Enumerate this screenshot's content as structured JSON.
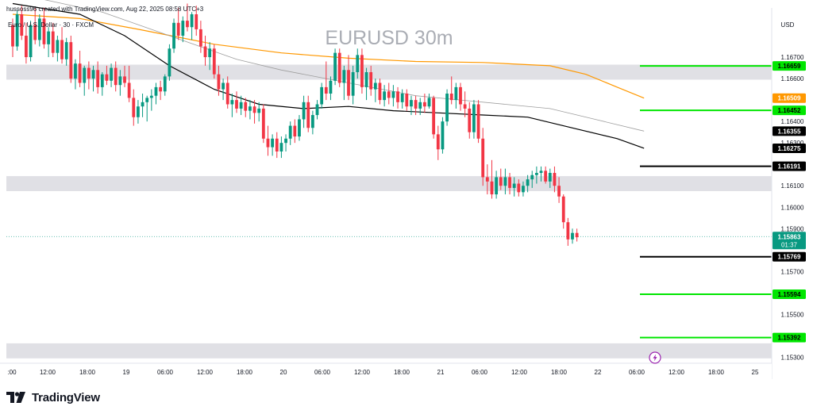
{
  "header": {
    "credit": "hussoss96 created with TradingView.com, Aug 22, 2025 08:58 UTC+3",
    "symbol_line": "Euro / U.S. Dollar · 30 · FXCM",
    "watermark": "EURUSD 30m",
    "currency": "USD"
  },
  "footer": {
    "brand": "TradingView"
  },
  "chart_data": {
    "type": "candlestick",
    "symbol": "EURUSD",
    "timeframe": "30m",
    "ylim": [
      1.1525,
      1.169
    ],
    "y_ticks": [
      "1.16700",
      "1.16600",
      "1.16400",
      "1.16300",
      "1.16100",
      "1.16000",
      "1.15900",
      "1.15700",
      "1.15500",
      "1.15300"
    ],
    "x_ticks": [
      ":00",
      "12:00",
      "18:00",
      "19",
      "06:00",
      "12:00",
      "18:00",
      "20",
      "06:00",
      "12:00",
      "18:00",
      "21",
      "06:00",
      "12:00",
      "18:00",
      "22",
      "06:00",
      "12:00",
      "18:00",
      "25"
    ],
    "zones": [
      {
        "from": 1.16595,
        "to": 1.16665
      },
      {
        "from": 1.16075,
        "to": 1.16145
      },
      {
        "from": 1.15295,
        "to": 1.15365
      }
    ],
    "levels": [
      {
        "value": 1.16659,
        "label": "1.16659",
        "color": "#00e600"
      },
      {
        "value": 1.16452,
        "label": "1.16452",
        "color": "#00e600"
      },
      {
        "value": 1.16191,
        "label": "1.16191",
        "color": "#000000"
      },
      {
        "value": 1.15769,
        "label": "1.15769",
        "color": "#000000"
      },
      {
        "value": 1.15594,
        "label": "1.15594",
        "color": "#00e600"
      },
      {
        "value": 1.15392,
        "label": "1.15392",
        "color": "#00e600"
      }
    ],
    "axis_tags": [
      {
        "value": 1.16659,
        "label": "1.16659",
        "bg": "#00e600",
        "fg": "#000000"
      },
      {
        "value": 1.16509,
        "label": "1.16509",
        "bg": "#ff9800",
        "fg": "#ffffff"
      },
      {
        "value": 1.16452,
        "label": "1.16452",
        "bg": "#00e600",
        "fg": "#000000"
      },
      {
        "value": 1.16355,
        "label": "1.16355",
        "bg": "#000000",
        "fg": "#ffffff"
      },
      {
        "value": 1.16275,
        "label": "1.16275",
        "bg": "#000000",
        "fg": "#ffffff"
      },
      {
        "value": 1.16191,
        "label": "1.16191",
        "bg": "#000000",
        "fg": "#ffffff"
      },
      {
        "value": 1.15769,
        "label": "1.15769",
        "bg": "#000000",
        "fg": "#ffffff"
      },
      {
        "value": 1.15594,
        "label": "1.15594",
        "bg": "#00e600",
        "fg": "#000000"
      },
      {
        "value": 1.15392,
        "label": "1.15392",
        "bg": "#00e600",
        "fg": "#000000"
      }
    ],
    "price_tag": {
      "value": 1.15863,
      "label": "1.15863",
      "countdown": "01:37",
      "bg": "#089981",
      "fg": "#ffffff"
    },
    "current_price": 1.15863,
    "ma_series": [
      {
        "color": "#ff9800",
        "points": [
          [
            0,
            1.169
          ],
          [
            15,
            1.1688
          ],
          [
            28,
            1.1683
          ],
          [
            45,
            1.1676
          ],
          [
            60,
            1.1672
          ],
          [
            75,
            1.16695
          ],
          [
            90,
            1.1668
          ],
          [
            105,
            1.16675
          ],
          [
            120,
            1.1666
          ],
          [
            128,
            1.1662
          ],
          [
            135,
            1.1656
          ],
          [
            141,
            1.16509
          ]
        ]
      },
      {
        "color": "#000000",
        "points": [
          [
            0,
            1.1695
          ],
          [
            15,
            1.169
          ],
          [
            25,
            1.168
          ],
          [
            35,
            1.1666
          ],
          [
            45,
            1.1655
          ],
          [
            55,
            1.1648
          ],
          [
            65,
            1.1646
          ],
          [
            75,
            1.1647
          ],
          [
            85,
            1.1645
          ],
          [
            95,
            1.1644
          ],
          [
            105,
            1.1643
          ],
          [
            115,
            1.1642
          ],
          [
            125,
            1.1637
          ],
          [
            135,
            1.1632
          ],
          [
            141,
            1.16275
          ]
        ]
      },
      {
        "color": "#9e9e9e",
        "points": [
          [
            0,
            1.17
          ],
          [
            20,
            1.1691
          ],
          [
            35,
            1.168
          ],
          [
            50,
            1.1669
          ],
          [
            60,
            1.1664
          ],
          [
            70,
            1.166
          ],
          [
            80,
            1.1656
          ],
          [
            90,
            1.1652
          ],
          [
            100,
            1.165
          ],
          [
            110,
            1.1648
          ],
          [
            120,
            1.1646
          ],
          [
            130,
            1.1641
          ],
          [
            141,
            1.16355
          ]
        ]
      }
    ],
    "candles": [
      [
        1.1685,
        1.1688,
        1.167,
        1.1675
      ],
      [
        1.1675,
        1.1692,
        1.1673,
        1.169
      ],
      [
        1.169,
        1.1694,
        1.1678,
        1.168
      ],
      [
        1.168,
        1.1686,
        1.1667,
        1.167
      ],
      [
        1.167,
        1.1687,
        1.1668,
        1.1685
      ],
      [
        1.1685,
        1.1693,
        1.1676,
        1.1678
      ],
      [
        1.1678,
        1.169,
        1.1675,
        1.1688
      ],
      [
        1.1688,
        1.1693,
        1.1674,
        1.1676
      ],
      [
        1.1676,
        1.1684,
        1.167,
        1.1682
      ],
      [
        1.1682,
        1.1686,
        1.167,
        1.1672
      ],
      [
        1.1672,
        1.168,
        1.1668,
        1.1678
      ],
      [
        1.1678,
        1.1684,
        1.1667,
        1.1669
      ],
      [
        1.1669,
        1.1679,
        1.1666,
        1.1677
      ],
      [
        1.1677,
        1.168,
        1.1658,
        1.166
      ],
      [
        1.166,
        1.1669,
        1.1655,
        1.1667
      ],
      [
        1.1667,
        1.1673,
        1.1656,
        1.1658
      ],
      [
        1.1658,
        1.1666,
        1.1652,
        1.1665
      ],
      [
        1.1665,
        1.1668,
        1.1655,
        1.166
      ],
      [
        1.166,
        1.1666,
        1.1654,
        1.1664
      ],
      [
        1.1664,
        1.1668,
        1.1653,
        1.1656
      ],
      [
        1.1656,
        1.1663,
        1.1652,
        1.1662
      ],
      [
        1.1662,
        1.1666,
        1.1657,
        1.1659
      ],
      [
        1.1659,
        1.1667,
        1.1656,
        1.1665
      ],
      [
        1.1665,
        1.1668,
        1.1654,
        1.1657
      ],
      [
        1.1657,
        1.1664,
        1.1652,
        1.1661
      ],
      [
        1.1661,
        1.1666,
        1.1656,
        1.1658
      ],
      [
        1.1658,
        1.1666,
        1.1649,
        1.1651
      ],
      [
        1.1651,
        1.1655,
        1.1638,
        1.1642
      ],
      [
        1.1642,
        1.165,
        1.1639,
        1.1647
      ],
      [
        1.1647,
        1.1653,
        1.1642,
        1.1649
      ],
      [
        1.1649,
        1.1652,
        1.164,
        1.1651
      ],
      [
        1.1651,
        1.1655,
        1.1645,
        1.1652
      ],
      [
        1.1652,
        1.1658,
        1.1648,
        1.1656
      ],
      [
        1.1656,
        1.1659,
        1.165,
        1.1654
      ],
      [
        1.1654,
        1.1662,
        1.1652,
        1.1661
      ],
      [
        1.1661,
        1.1676,
        1.1659,
        1.1674
      ],
      [
        1.1674,
        1.1688,
        1.1672,
        1.1686
      ],
      [
        1.1686,
        1.1693,
        1.1678,
        1.168
      ],
      [
        1.168,
        1.1689,
        1.1677,
        1.1687
      ],
      [
        1.1687,
        1.1695,
        1.1682,
        1.1684
      ],
      [
        1.1684,
        1.1691,
        1.1678,
        1.169
      ],
      [
        1.169,
        1.1694,
        1.168,
        1.1683
      ],
      [
        1.1683,
        1.1687,
        1.1672,
        1.1675
      ],
      [
        1.1675,
        1.168,
        1.1666,
        1.167
      ],
      [
        1.167,
        1.1677,
        1.1664,
        1.1674
      ],
      [
        1.1674,
        1.1676,
        1.166,
        1.1662
      ],
      [
        1.1662,
        1.1666,
        1.1652,
        1.1655
      ],
      [
        1.1655,
        1.166,
        1.165,
        1.1658
      ],
      [
        1.1658,
        1.1661,
        1.1646,
        1.1648
      ],
      [
        1.1648,
        1.1653,
        1.1642,
        1.165
      ],
      [
        1.165,
        1.1654,
        1.1644,
        1.1646
      ],
      [
        1.1646,
        1.1652,
        1.1643,
        1.1649
      ],
      [
        1.1649,
        1.1651,
        1.1642,
        1.1645
      ],
      [
        1.1645,
        1.165,
        1.1641,
        1.1647
      ],
      [
        1.1647,
        1.165,
        1.1639,
        1.1644
      ],
      [
        1.1644,
        1.1649,
        1.164,
        1.1646
      ],
      [
        1.1646,
        1.1648,
        1.163,
        1.1632
      ],
      [
        1.1632,
        1.1638,
        1.1624,
        1.1628
      ],
      [
        1.1628,
        1.1634,
        1.1624,
        1.1632
      ],
      [
        1.1632,
        1.1635,
        1.1623,
        1.1626
      ],
      [
        1.1626,
        1.1633,
        1.1623,
        1.163
      ],
      [
        1.163,
        1.1634,
        1.1626,
        1.1632
      ],
      [
        1.1632,
        1.164,
        1.1629,
        1.1638
      ],
      [
        1.1638,
        1.1641,
        1.163,
        1.1633
      ],
      [
        1.1633,
        1.1643,
        1.1631,
        1.1641
      ],
      [
        1.1641,
        1.1652,
        1.1637,
        1.1649
      ],
      [
        1.1649,
        1.1652,
        1.1635,
        1.1637
      ],
      [
        1.1637,
        1.1645,
        1.1634,
        1.1643
      ],
      [
        1.1643,
        1.165,
        1.1641,
        1.1648
      ],
      [
        1.1648,
        1.1658,
        1.1646,
        1.1656
      ],
      [
        1.1656,
        1.1668,
        1.165,
        1.1653
      ],
      [
        1.1653,
        1.1661,
        1.165,
        1.1659
      ],
      [
        1.1659,
        1.1674,
        1.1657,
        1.1672
      ],
      [
        1.1672,
        1.1674,
        1.1656,
        1.1658
      ],
      [
        1.1658,
        1.1666,
        1.165,
        1.1664
      ],
      [
        1.1664,
        1.1671,
        1.165,
        1.1652
      ],
      [
        1.1652,
        1.1666,
        1.1648,
        1.1663
      ],
      [
        1.1663,
        1.1674,
        1.166,
        1.1671
      ],
      [
        1.1671,
        1.1674,
        1.1653,
        1.1656
      ],
      [
        1.1656,
        1.1665,
        1.165,
        1.1663
      ],
      [
        1.1663,
        1.1666,
        1.1652,
        1.1655
      ],
      [
        1.1655,
        1.166,
        1.1649,
        1.1658
      ],
      [
        1.1658,
        1.166,
        1.1648,
        1.165
      ],
      [
        1.165,
        1.1657,
        1.1647,
        1.1654
      ],
      [
        1.1654,
        1.1658,
        1.1648,
        1.1651
      ],
      [
        1.1651,
        1.1657,
        1.1647,
        1.1654
      ],
      [
        1.1654,
        1.1656,
        1.1646,
        1.1649
      ],
      [
        1.1649,
        1.1655,
        1.1646,
        1.1653
      ],
      [
        1.1653,
        1.1655,
        1.1645,
        1.1647
      ],
      [
        1.1647,
        1.1652,
        1.1643,
        1.165
      ],
      [
        1.165,
        1.1652,
        1.1643,
        1.1646
      ],
      [
        1.1646,
        1.1651,
        1.1643,
        1.1649
      ],
      [
        1.1649,
        1.1653,
        1.1644,
        1.1647
      ],
      [
        1.1647,
        1.1653,
        1.1646,
        1.1651
      ],
      [
        1.1651,
        1.1652,
        1.1632,
        1.1634
      ],
      [
        1.1634,
        1.1638,
        1.1622,
        1.1627
      ],
      [
        1.1627,
        1.1642,
        1.1625,
        1.164
      ],
      [
        1.164,
        1.1655,
        1.1638,
        1.1653
      ],
      [
        1.1653,
        1.1661,
        1.1648,
        1.165
      ],
      [
        1.165,
        1.1658,
        1.1646,
        1.1656
      ],
      [
        1.1656,
        1.1658,
        1.1645,
        1.1648
      ],
      [
        1.1648,
        1.1654,
        1.1642,
        1.1646
      ],
      [
        1.1646,
        1.1649,
        1.1632,
        1.1635
      ],
      [
        1.1635,
        1.165,
        1.1632,
        1.1648
      ],
      [
        1.1648,
        1.165,
        1.163,
        1.1632
      ],
      [
        1.1632,
        1.1637,
        1.161,
        1.1614
      ],
      [
        1.1614,
        1.162,
        1.1606,
        1.1612
      ],
      [
        1.1612,
        1.1622,
        1.1604,
        1.1606
      ],
      [
        1.1606,
        1.1617,
        1.1604,
        1.1614
      ],
      [
        1.1614,
        1.1618,
        1.1608,
        1.161
      ],
      [
        1.161,
        1.1618,
        1.1606,
        1.1614
      ],
      [
        1.1614,
        1.1616,
        1.1606,
        1.1609
      ],
      [
        1.1609,
        1.1614,
        1.1605,
        1.1611
      ],
      [
        1.1611,
        1.1613,
        1.1605,
        1.1607
      ],
      [
        1.1607,
        1.1612,
        1.1605,
        1.161
      ],
      [
        1.161,
        1.1615,
        1.1607,
        1.1613
      ],
      [
        1.1613,
        1.1617,
        1.1609,
        1.1615
      ],
      [
        1.1615,
        1.1619,
        1.1611,
        1.1616
      ],
      [
        1.1616,
        1.1619,
        1.1612,
        1.1617
      ],
      [
        1.1617,
        1.1619,
        1.1611,
        1.1612
      ],
      [
        1.1612,
        1.1618,
        1.1609,
        1.1616
      ],
      [
        1.1616,
        1.1619,
        1.1607,
        1.161
      ],
      [
        1.161,
        1.1614,
        1.1602,
        1.1605
      ],
      [
        1.1605,
        1.1606,
        1.159,
        1.1593
      ],
      [
        1.1593,
        1.1595,
        1.1582,
        1.1585
      ],
      [
        1.1585,
        1.159,
        1.1583,
        1.1588
      ],
      [
        1.1588,
        1.159,
        1.1584,
        1.1586
      ]
    ],
    "grid": false,
    "legend": "none"
  }
}
